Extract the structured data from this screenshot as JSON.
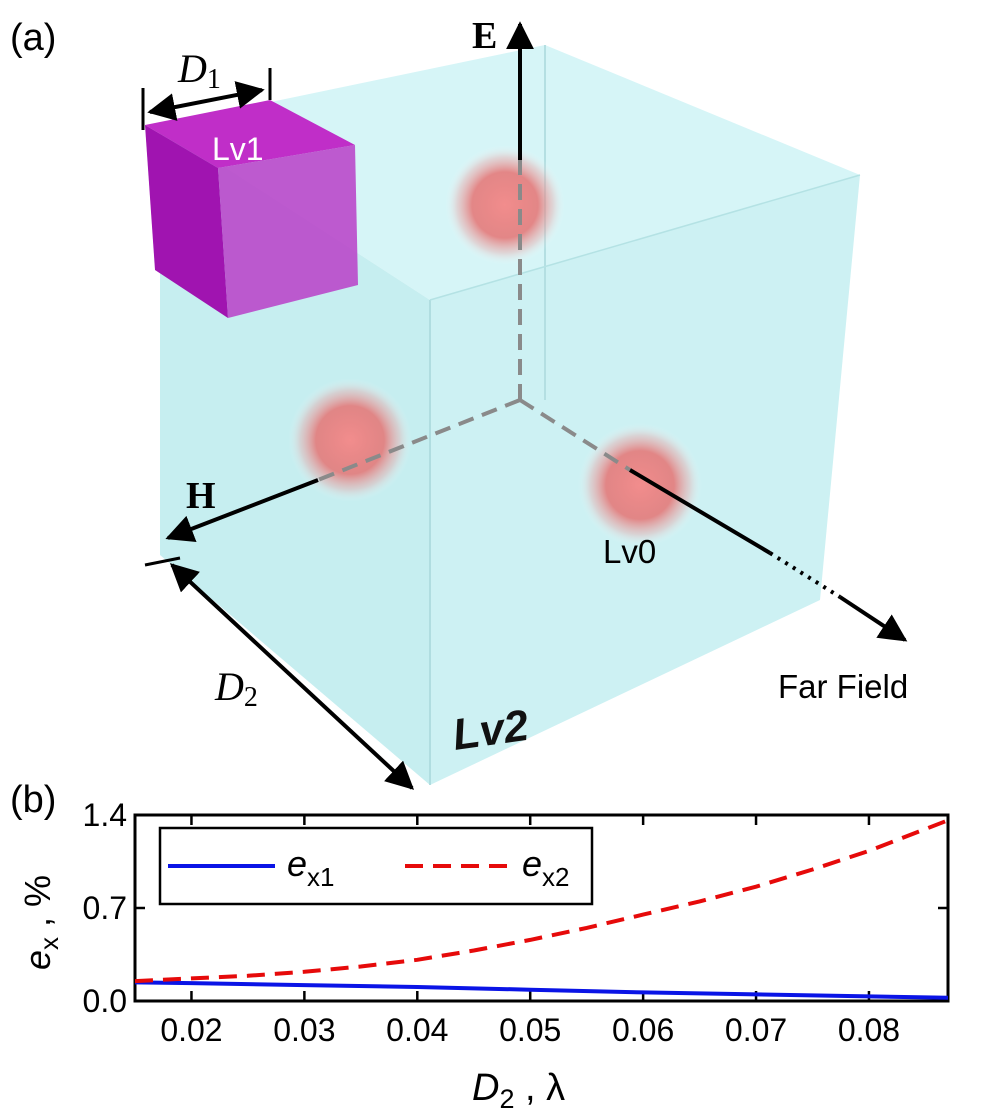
{
  "panel_a": {
    "label": "(a)",
    "e_axis_label": "E",
    "h_axis_label": "H",
    "lv0_label": "Lv0",
    "lv1_label": "Lv1",
    "lv2_label": "Lv2",
    "far_field_label": "Far Field",
    "d1_main": "D",
    "d1_sub": "1",
    "d2_main": "D",
    "d2_sub": "2"
  },
  "panel_b": {
    "label": "(b)",
    "ylabel_main": "e",
    "ylabel_sub": "x",
    "ylabel_unit": " , %",
    "xlabel_main": "D",
    "xlabel_sub": "2",
    "xlabel_unit": " , λ",
    "legend": [
      {
        "main": "e",
        "sub": "x1"
      },
      {
        "main": "e",
        "sub": "x2"
      }
    ]
  },
  "chart_data": {
    "type": "line",
    "title": "",
    "xlabel": "D2 , λ",
    "ylabel": "ex , %",
    "xlim": [
      0.015,
      0.087
    ],
    "ylim": [
      0.0,
      1.4
    ],
    "xticks": [
      "0.02",
      "0.03",
      "0.04",
      "0.05",
      "0.06",
      "0.07",
      "0.08"
    ],
    "yticks": [
      "0.0",
      "0.7",
      "1.4"
    ],
    "xtick_values": [
      0.02,
      0.03,
      0.04,
      0.05,
      0.06,
      0.07,
      0.08
    ],
    "ytick_values": [
      0.0,
      0.7,
      1.4
    ],
    "legend_position": "top-left",
    "series": [
      {
        "name": "ex1",
        "color": "#0a14e6",
        "style": "solid",
        "x": [
          0.015,
          0.02,
          0.03,
          0.04,
          0.05,
          0.06,
          0.07,
          0.08,
          0.087
        ],
        "y": [
          0.14,
          0.135,
          0.12,
          0.105,
          0.085,
          0.065,
          0.05,
          0.035,
          0.025
        ]
      },
      {
        "name": "ex2",
        "color": "#e60a0a",
        "style": "dashed",
        "x": [
          0.015,
          0.02,
          0.025,
          0.03,
          0.035,
          0.04,
          0.045,
          0.05,
          0.055,
          0.06,
          0.065,
          0.07,
          0.075,
          0.08,
          0.087
        ],
        "y": [
          0.15,
          0.17,
          0.19,
          0.22,
          0.26,
          0.31,
          0.38,
          0.46,
          0.55,
          0.65,
          0.75,
          0.86,
          0.99,
          1.13,
          1.36
        ]
      }
    ]
  },
  "colors": {
    "cube_face": "#c8f0f0",
    "lv1_cube": "#b020c0",
    "sphere": "#e86a6a"
  }
}
